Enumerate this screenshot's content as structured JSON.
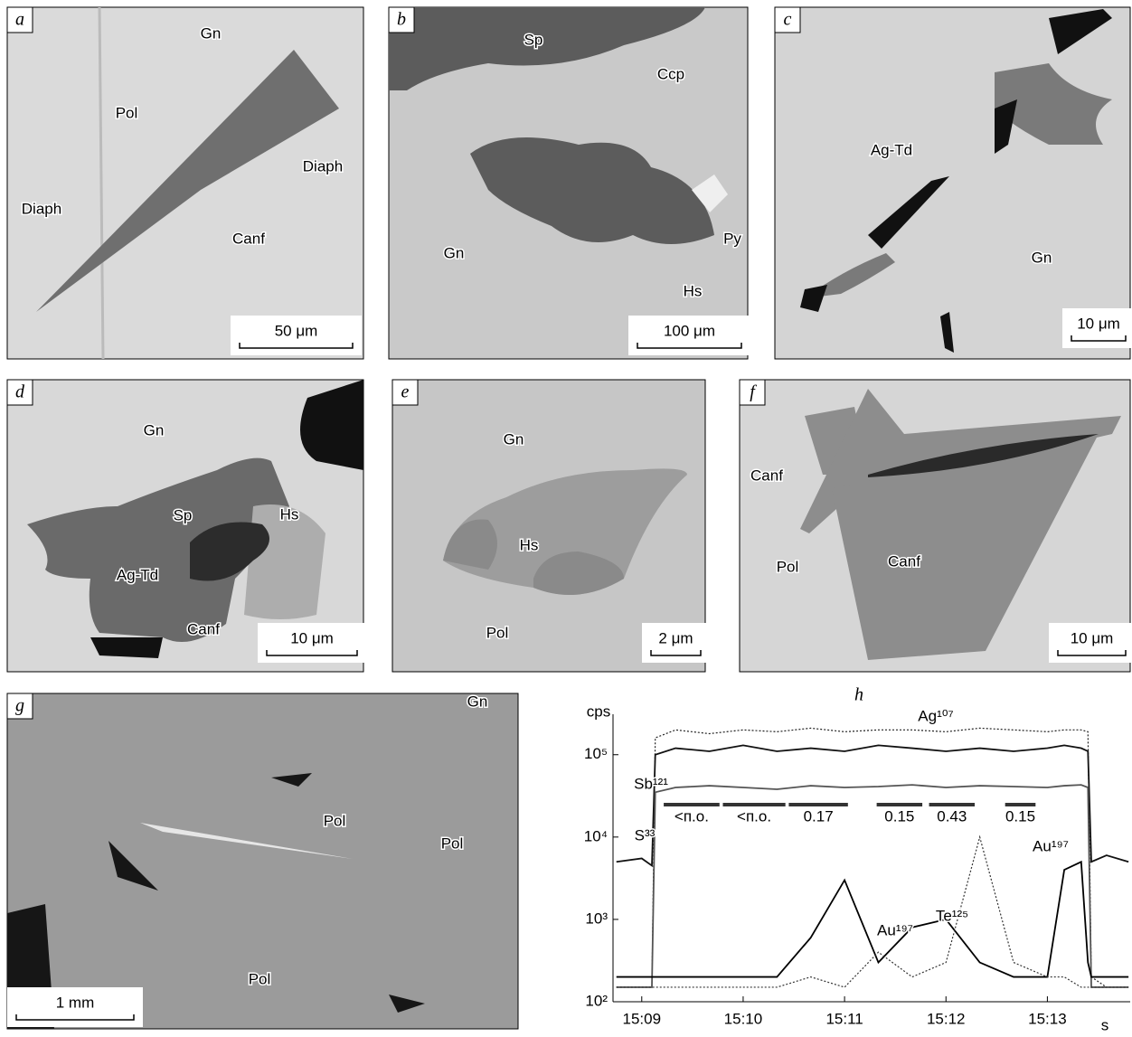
{
  "panels": [
    {
      "letter": "a",
      "labels": [
        "Gn",
        "Pol",
        "Diaph",
        "Diaph",
        "Canf"
      ],
      "scale": "50 μm"
    },
    {
      "letter": "b",
      "labels": [
        "Sp",
        "Ccp",
        "Gn",
        "Py",
        "Hs"
      ],
      "scale": "100 μm"
    },
    {
      "letter": "c",
      "labels": [
        "Ag-Td",
        "Gn"
      ],
      "scale": "10 μm"
    },
    {
      "letter": "d",
      "labels": [
        "Gn",
        "Sp",
        "Hs",
        "Ag-Td",
        "Canf"
      ],
      "scale": "10 μm"
    },
    {
      "letter": "e",
      "labels": [
        "Gn",
        "Hs",
        "Pol"
      ],
      "scale": "2 μm"
    },
    {
      "letter": "f",
      "labels": [
        "Canf",
        "Canf",
        "Pol"
      ],
      "scale": "10 μm"
    },
    {
      "letter": "g",
      "labels": [
        "Gn",
        "Pol",
        "Pol",
        "Pol"
      ],
      "scale": "1 mm"
    }
  ],
  "chart_data": {
    "type": "line",
    "title": "h",
    "y_label": "cps",
    "x_label": "s",
    "log_y": true,
    "x": [
      -15,
      0,
      6,
      8,
      20,
      40,
      60,
      80,
      100,
      120,
      140,
      160,
      180,
      200,
      220,
      240,
      250,
      260,
      264,
      266,
      275,
      288
    ],
    "xlim": [
      -17,
      289
    ],
    "xticks": [
      {
        "value": 0,
        "label": "15:09"
      },
      {
        "value": 60,
        "label": "15:10"
      },
      {
        "value": 120,
        "label": "15:11"
      },
      {
        "value": 180,
        "label": "15:12"
      },
      {
        "value": 240,
        "label": "15:13"
      }
    ],
    "ylim": [
      100,
      310000
    ],
    "yticks": [
      {
        "value": 100,
        "label": "10²"
      },
      {
        "value": 1000,
        "label": "10³"
      },
      {
        "value": 10000,
        "label": "10⁴"
      },
      {
        "value": 100000,
        "label": "10⁵"
      }
    ],
    "series": [
      {
        "name": "Ag¹⁰⁷",
        "color": "#222222",
        "style": "dotted",
        "values": [
          150,
          150,
          150,
          160000,
          200000,
          180000,
          200000,
          190000,
          210000,
          190000,
          200000,
          200000,
          190000,
          210000,
          200000,
          190000,
          200000,
          200000,
          190000,
          200,
          150,
          150
        ]
      },
      {
        "name": "S³³",
        "color": "#111111",
        "style": "solid",
        "values": [
          5000,
          5500,
          4500,
          100000,
          120000,
          110000,
          130000,
          110000,
          120000,
          110000,
          130000,
          120000,
          110000,
          120000,
          110000,
          120000,
          130000,
          120000,
          110000,
          5000,
          6000,
          5000
        ]
      },
      {
        "name": "Sb¹²¹",
        "color": "#555555",
        "style": "solid",
        "values": [
          150,
          150,
          150,
          35000,
          40000,
          42000,
          40000,
          38000,
          42000,
          40000,
          41000,
          43000,
          40000,
          42000,
          41000,
          40000,
          42000,
          43000,
          40000,
          150,
          150,
          150
        ]
      },
      {
        "name": "Au¹⁹⁷",
        "color": "#000000",
        "style": "solid",
        "values": [
          200,
          200,
          200,
          200,
          200,
          200,
          200,
          200,
          600,
          3000,
          300,
          800,
          1000,
          300,
          200,
          200,
          4000,
          5000,
          300,
          200,
          200,
          200
        ]
      },
      {
        "name": "Te¹²⁵",
        "color": "#333333",
        "style": "dotted",
        "values": [
          150,
          150,
          150,
          150,
          150,
          150,
          150,
          150,
          200,
          150,
          400,
          200,
          300,
          10000,
          300,
          200,
          200,
          150,
          150,
          150,
          150,
          150
        ]
      }
    ],
    "annotations": [
      "Au¹⁹⁷"
    ],
    "intervals": [
      {
        "label": "<п.о.",
        "start": 13,
        "end": 46
      },
      {
        "label": "<п.о.",
        "start": 48,
        "end": 85
      },
      {
        "label": "0.17",
        "start": 87,
        "end": 122
      },
      {
        "label": "0.15",
        "start": 139,
        "end": 166
      },
      {
        "label": "0.43",
        "start": 170,
        "end": 197
      },
      {
        "label": "0.15",
        "start": 215,
        "end": 233
      }
    ]
  }
}
